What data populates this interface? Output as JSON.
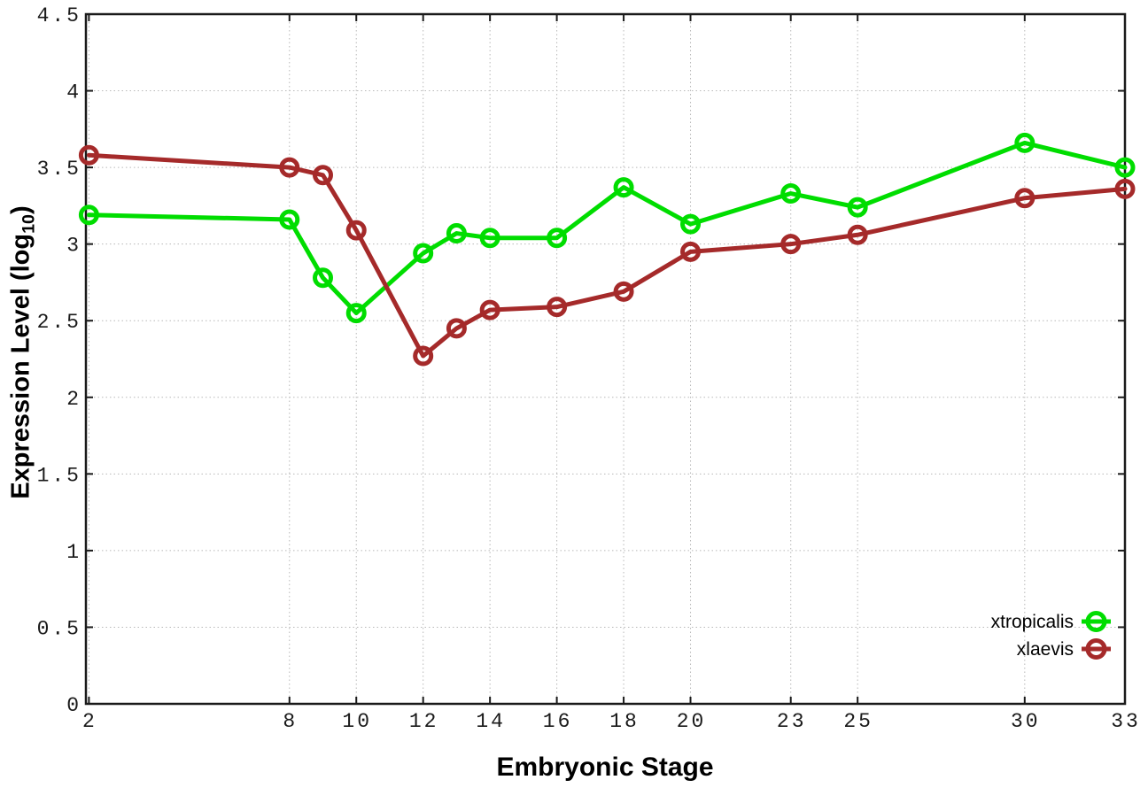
{
  "figure": {
    "background": "#ffffff",
    "xlabel": "Embryonic Stage",
    "ylabel": {
      "prefix": "Expression Level (log",
      "sub": "10",
      "suffix": ")"
    }
  },
  "chart_data": {
    "type": "line",
    "title": "",
    "xlabel": "Embryonic Stage",
    "ylabel": "Expression Level (log10)",
    "x": [
      2,
      8,
      9,
      10,
      12,
      13,
      14,
      16,
      18,
      20,
      23,
      25,
      30,
      33
    ],
    "series": [
      {
        "name": "xtropicalis",
        "color": "#00dd00",
        "values": [
          3.19,
          3.16,
          2.78,
          2.55,
          2.94,
          3.07,
          3.04,
          3.04,
          3.37,
          3.13,
          3.33,
          3.24,
          3.66,
          3.5
        ]
      },
      {
        "name": "xlaevis",
        "color": "#a52a2a",
        "values": [
          3.58,
          3.5,
          3.45,
          3.09,
          2.27,
          2.45,
          2.57,
          2.59,
          2.69,
          2.95,
          3.0,
          3.06,
          3.3,
          3.36
        ]
      }
    ],
    "x_ticks": {
      "values": [
        2,
        8,
        10,
        12,
        14,
        16,
        18,
        20,
        23,
        25,
        30,
        33
      ],
      "labels": [
        "2",
        "8",
        "10",
        "12",
        "14",
        "16",
        "18",
        "20",
        "23",
        "25",
        "30",
        "33"
      ]
    },
    "y_ticks": {
      "values": [
        0,
        0.5,
        1,
        1.5,
        2,
        2.5,
        3,
        3.5,
        4,
        4.5
      ],
      "labels": [
        "0",
        "0.5",
        "1",
        "1.5",
        "2",
        "2.5",
        "3",
        "3.5",
        "4",
        "4.5"
      ]
    },
    "xlim": [
      1.91,
      33
    ],
    "ylim": [
      0,
      4.5
    ],
    "grid": true,
    "grid_color": "#b8b8b8",
    "axis_color": "#1a1a1a",
    "marker": "open-circle",
    "legend": {
      "position": "inside-bottom-right",
      "entries": [
        "xtropicalis",
        "xlaevis"
      ]
    }
  }
}
